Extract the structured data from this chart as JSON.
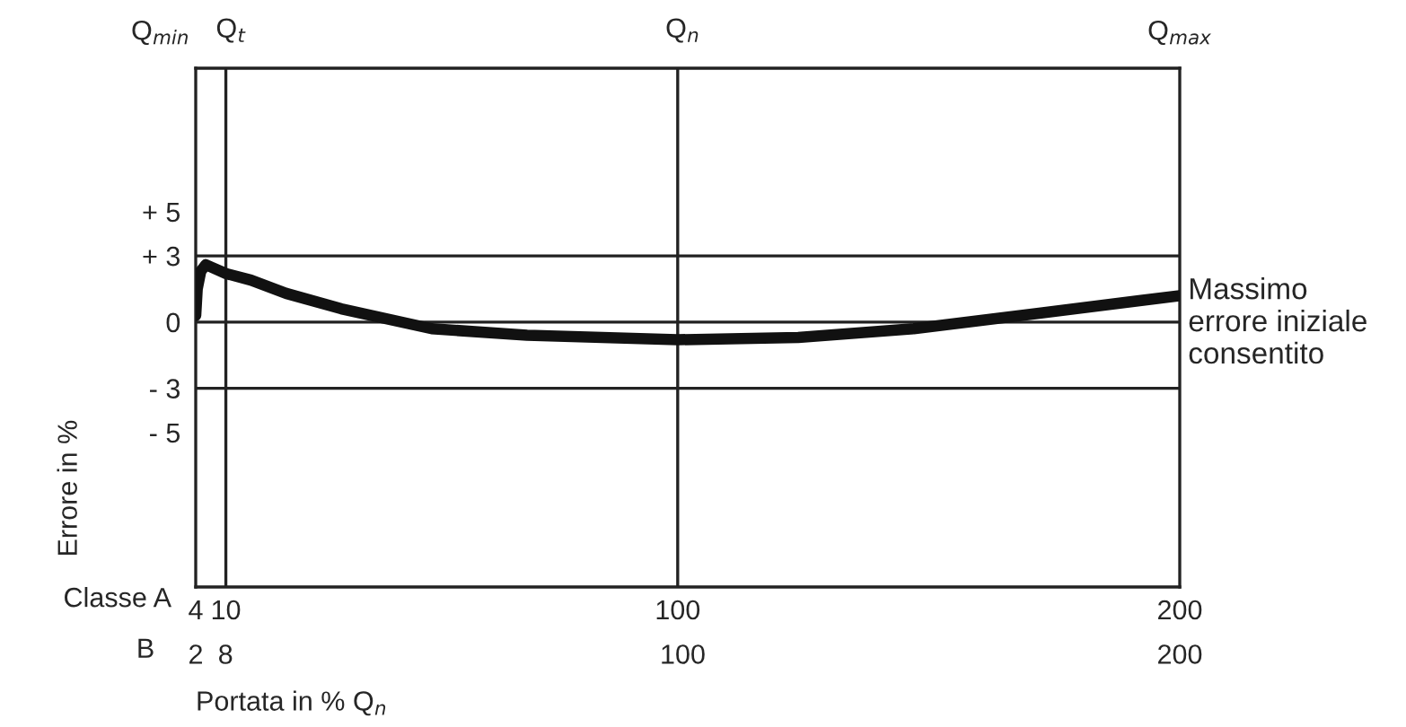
{
  "chart_data": {
    "type": "line",
    "xlabel": "Portata in % Q$_{n}$",
    "ylabel": "Errore in %",
    "x": [
      4,
      4.3,
      5,
      6,
      7,
      10,
      15,
      22,
      33,
      51,
      70,
      100,
      124,
      147,
      172,
      200
    ],
    "series": [
      {
        "color": "#111111",
        "values": [
          0.3,
          1.5,
          2.3,
          2.6,
          2.5,
          2.2,
          1.9,
          1.3,
          0.6,
          -0.3,
          -0.6,
          -0.8,
          -0.7,
          -0.3,
          0.4,
          1.2
        ]
      }
    ],
    "xlim": [
      4,
      200
    ],
    "xticks": [
      4,
      10,
      100,
      200
    ],
    "x2lim": [
      2,
      200
    ],
    "x2ticks": [
      2,
      8,
      100,
      200
    ],
    "ylim": [
      -12,
      11.5
    ],
    "yticks": [
      {
        "value": 5,
        "label": "+ 5"
      },
      {
        "value": 3,
        "label": "+ 3"
      },
      0,
      {
        "value": -3,
        "label": "- 3"
      },
      {
        "value": -5,
        "label": "- 5"
      }
    ],
    "ref_lines": [
      {
        "axis": "y",
        "value": 3
      },
      {
        "axis": "y",
        "value": 0
      },
      {
        "axis": "y",
        "value": -3
      },
      {
        "axis": "x",
        "value": 10,
        "label": "Q$_{t}$"
      },
      {
        "axis": "x",
        "value": 100,
        "label": "Q$_{n}$"
      }
    ],
    "marker": "none",
    "line_style": "solid",
    "annotations": [
      "Massimo\nerrore iniziale\nconsentito",
      "Classe A",
      "B",
      "Q$_{min}$",
      "Q$_{max}$"
    ]
  }
}
